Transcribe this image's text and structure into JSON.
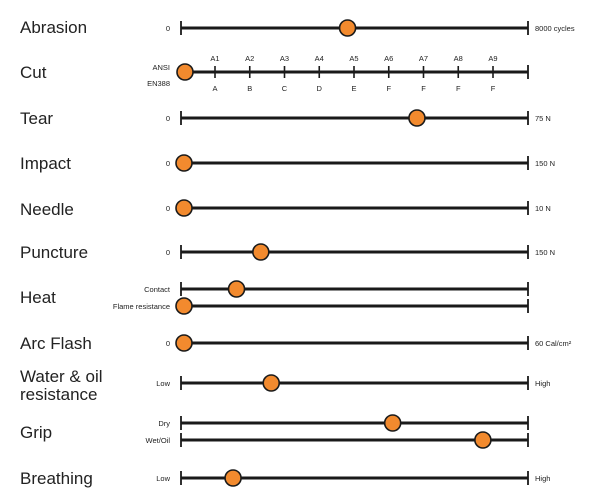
{
  "colors": {
    "line": "#1a1a1a",
    "dot": "#f28a2e",
    "dot_stroke": "#1a1a1a",
    "text": "#222222"
  },
  "rows": [
    {
      "label": [
        "Abrasion"
      ],
      "bars": [
        {
          "side": "",
          "left": "0",
          "right": "8000 cycles",
          "value": 0.48
        }
      ]
    },
    {
      "label": [
        "Cut"
      ],
      "cut": true,
      "top_label": "ANSI",
      "bottom_label": "EN388",
      "ticks_top": [
        "A1",
        "A2",
        "A3",
        "A4",
        "A5",
        "A6",
        "A7",
        "A8",
        "A9"
      ],
      "ticks_bottom": [
        "A",
        "B",
        "C",
        "D",
        "E",
        "F",
        "F",
        "F",
        "F"
      ],
      "bars": [
        {
          "side": "",
          "left": "",
          "right": "",
          "value": 0.0
        }
      ]
    },
    {
      "label": [
        "Tear"
      ],
      "bars": [
        {
          "side": "",
          "left": "0",
          "right": "75 N",
          "value": 0.68
        }
      ]
    },
    {
      "label": [
        "Impact"
      ],
      "bars": [
        {
          "side": "",
          "left": "0",
          "right": "150 N",
          "value": 0.0
        }
      ]
    },
    {
      "label": [
        "Needle"
      ],
      "bars": [
        {
          "side": "",
          "left": "0",
          "right": "10 N",
          "value": 0.0
        }
      ]
    },
    {
      "label": [
        "Puncture"
      ],
      "bars": [
        {
          "side": "",
          "left": "0",
          "right": "150 N",
          "value": 0.23
        }
      ]
    },
    {
      "label": [
        "Heat"
      ],
      "bars": [
        {
          "side": "Contact",
          "left": "",
          "right": "",
          "value": 0.16
        },
        {
          "side": "Flame resistance",
          "left": "",
          "right": "",
          "value": 0.0
        }
      ]
    },
    {
      "label": [
        "Arc Flash"
      ],
      "bars": [
        {
          "side": "",
          "left": "0",
          "right": "60 Cal/cm²",
          "value": 0.0
        }
      ]
    },
    {
      "label": [
        "Water & oil",
        "resistance"
      ],
      "bars": [
        {
          "side": "",
          "left": "Low",
          "right": "High",
          "value": 0.26
        }
      ]
    },
    {
      "label": [
        "Grip"
      ],
      "bars": [
        {
          "side": "Dry",
          "left": "",
          "right": "",
          "value": 0.61
        },
        {
          "side": "Wet/Oil",
          "left": "",
          "right": "",
          "value": 0.87
        }
      ]
    },
    {
      "label": [
        "Breathing"
      ],
      "bars": [
        {
          "side": "",
          "left": "Low",
          "right": "High",
          "value": 0.15
        }
      ]
    }
  ]
}
